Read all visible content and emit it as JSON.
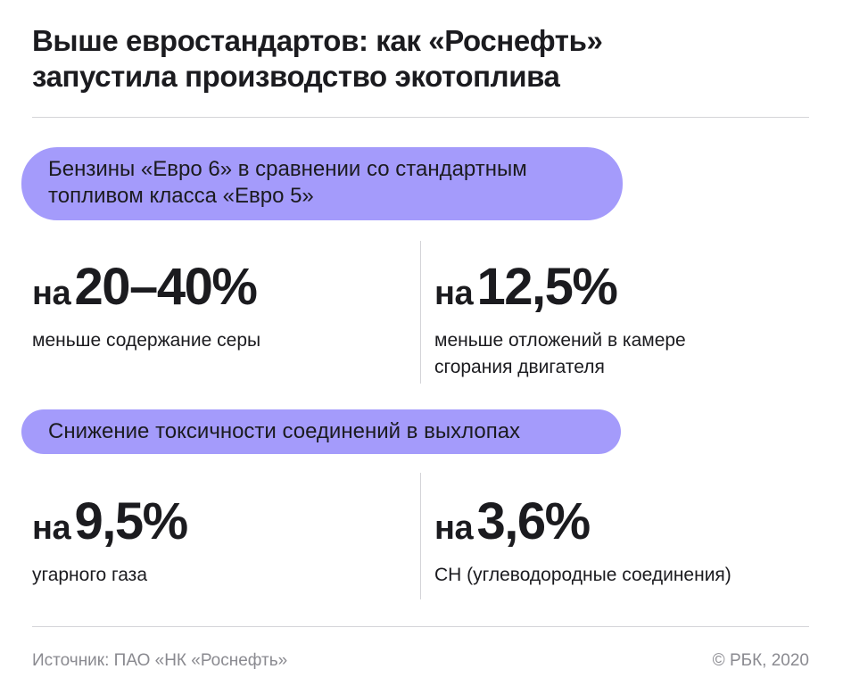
{
  "title": {
    "line1": "Выше евростандартов: как «Роснефть»",
    "line2": "запустила производство экотоплива"
  },
  "section1": {
    "label_line1": "Бензины «Евро 6» в сравнении со стандартным",
    "label_line2": "топливом класса «Евро 5»",
    "stats": [
      {
        "prefix": "на",
        "value": "20–40%",
        "desc_line1": "меньше содержание серы",
        "desc_line2": ""
      },
      {
        "prefix": "на",
        "value": "12,5%",
        "desc_line1": "меньше отложений в камере",
        "desc_line2": "сгорания двигателя"
      }
    ]
  },
  "section2": {
    "label": "Снижение токсичности соединений в выхлопах",
    "stats": [
      {
        "prefix": "на",
        "value": "9,5%",
        "desc_line1": "угарного газа"
      },
      {
        "prefix": "на",
        "value": "3,6%",
        "desc_line1": "CH (углеводородные соединения)"
      }
    ]
  },
  "footer": {
    "source": "Источник: ПАО «НК «Роснефть»",
    "copyright": "© РБК, 2020"
  },
  "colors": {
    "accent_pill": "#a49bfb",
    "text": "#1b1b1f",
    "muted": "#8a8a90",
    "divider": "#d4d4d8"
  }
}
